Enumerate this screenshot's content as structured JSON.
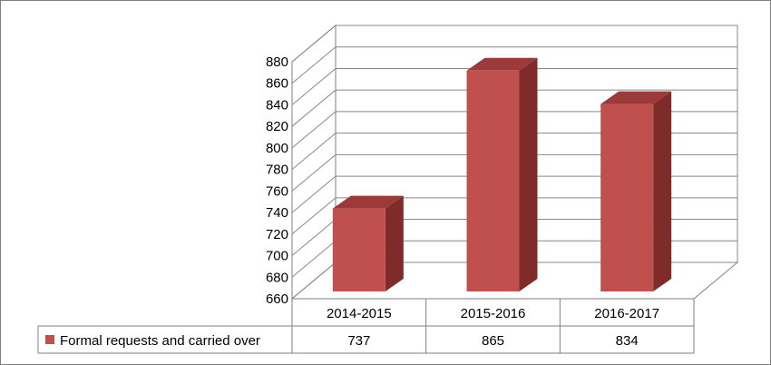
{
  "chart_data": {
    "type": "bar",
    "categories": [
      "2014-2015",
      "2015-2016",
      "2016-2017"
    ],
    "series": [
      {
        "name": "Formal requests and carried over",
        "values": [
          737,
          865,
          834
        ]
      }
    ],
    "ylim": [
      660,
      880
    ],
    "ytick_step": 20,
    "yticks": [
      "660",
      "680",
      "700",
      "720",
      "740",
      "760",
      "780",
      "800",
      "820",
      "840",
      "860",
      "880"
    ],
    "grid": true,
    "legend": "data-table-left",
    "style": "3d",
    "data_table": true,
    "colors": {
      "bar_front": "#c0504d",
      "bar_side": "#7f2b29",
      "bar_top": "#9b3a38",
      "gridline": "#888888",
      "frame": "#7f7f7f"
    }
  }
}
